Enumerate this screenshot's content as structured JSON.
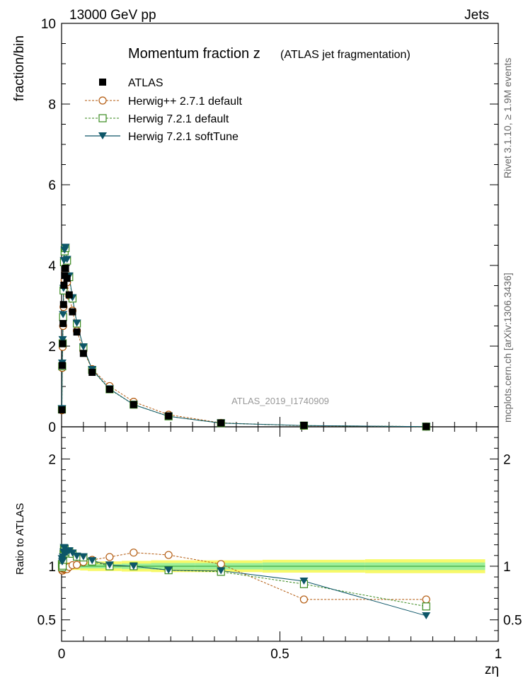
{
  "header": {
    "left": "13000 GeV pp",
    "right": "Jets",
    "side_top": "Rivet 3.1.10, ≥ 1.9M events",
    "side_bottom": "mcplots.cern.ch [arXiv:1306.3436]",
    "watermark": "ATLAS_2019_I1740909"
  },
  "chart_data": {
    "type": "scatter",
    "title": "Momentum fraction z",
    "subtitle": "(ATLAS jet fragmentation)",
    "xlabel": "zη",
    "ylabel": "fraction/bin",
    "ratio_ylabel": "Ratio to ATLAS",
    "xlim": [
      0,
      1
    ],
    "ylim": [
      0,
      10
    ],
    "ratio_ylim": [
      0.3,
      2.3
    ],
    "x_ticks": [
      "0",
      "0.5",
      "1"
    ],
    "y_ticks": [
      "0",
      "2",
      "4",
      "6",
      "8",
      "10"
    ],
    "ratio_ticks": [
      "0.5",
      "1",
      "2"
    ],
    "legend_position": "top-left",
    "x": [
      0.0008,
      0.0015,
      0.0025,
      0.0035,
      0.0045,
      0.0055,
      0.007,
      0.009,
      0.0125,
      0.0175,
      0.025,
      0.035,
      0.05,
      0.07,
      0.11,
      0.165,
      0.245,
      0.365,
      0.555,
      0.835
    ],
    "series": [
      {
        "name": "ATLAS",
        "values": [
          0.42,
          1.52,
          2.06,
          2.56,
          3.03,
          3.51,
          3.75,
          3.93,
          3.68,
          3.27,
          2.85,
          2.35,
          1.82,
          1.35,
          0.93,
          0.55,
          0.27,
          0.096,
          0.036,
          0.008
        ]
      },
      {
        "name": "Herwig++ 2.7.1 default",
        "values": [
          0.41,
          1.46,
          1.98,
          2.5,
          2.97,
          3.43,
          3.64,
          3.82,
          3.58,
          3.25,
          2.88,
          2.38,
          1.89,
          1.43,
          1.01,
          0.62,
          0.3,
          0.098,
          0.025,
          0.0055
        ]
      },
      {
        "name": "Herwig 7.2.1 default",
        "values": [
          0.43,
          1.5,
          2.07,
          2.72,
          3.38,
          4.08,
          4.35,
          4.43,
          4.12,
          3.71,
          3.18,
          2.56,
          1.97,
          1.41,
          0.93,
          0.55,
          0.26,
          0.091,
          0.03,
          0.005
        ]
      },
      {
        "name": "Herwig 7.2.1 softTune",
        "values": [
          0.45,
          1.58,
          2.16,
          2.78,
          3.43,
          4.12,
          4.38,
          4.45,
          4.15,
          3.74,
          3.2,
          2.57,
          1.98,
          1.42,
          0.94,
          0.55,
          0.26,
          0.092,
          0.031,
          0.0043
        ]
      }
    ],
    "ratio_series": [
      {
        "name": "Herwig++ 2.7.1 default",
        "values": [
          0.97,
          0.96,
          0.96,
          0.975,
          0.98,
          0.977,
          0.97,
          0.972,
          0.973,
          0.994,
          1.01,
          1.013,
          1.039,
          1.059,
          1.086,
          1.127,
          1.105,
          1.02,
          0.69,
          0.69
        ]
      },
      {
        "name": "Herwig 7.2.1 default",
        "values": [
          1.02,
          0.99,
          1.005,
          1.06,
          1.115,
          1.162,
          1.16,
          1.127,
          1.12,
          1.135,
          1.116,
          1.089,
          1.082,
          1.044,
          1.0,
          1.0,
          0.963,
          0.948,
          0.833,
          0.625
        ]
      },
      {
        "name": "Herwig 7.2.1 softTune",
        "values": [
          1.07,
          1.04,
          1.05,
          1.086,
          1.132,
          1.174,
          1.168,
          1.132,
          1.128,
          1.144,
          1.123,
          1.094,
          1.088,
          1.052,
          1.011,
          1.0,
          0.963,
          0.958,
          0.861,
          0.538
        ]
      }
    ],
    "band_x": [
      0.0008,
      0.0015,
      0.0025,
      0.0035,
      0.0045,
      0.0055,
      0.007,
      0.009,
      0.0125,
      0.0175,
      0.025,
      0.035,
      0.05,
      0.07,
      0.11,
      0.165,
      0.245,
      0.365,
      0.555,
      0.835
    ],
    "band_inner": [
      0.02,
      0.02,
      0.02,
      0.02,
      0.02,
      0.02,
      0.02,
      0.02,
      0.02,
      0.02,
      0.02,
      0.02,
      0.02,
      0.02,
      0.02,
      0.025,
      0.03,
      0.03,
      0.035,
      0.035
    ],
    "band_outer": [
      0.035,
      0.035,
      0.035,
      0.035,
      0.035,
      0.035,
      0.035,
      0.035,
      0.035,
      0.035,
      0.035,
      0.035,
      0.04,
      0.045,
      0.045,
      0.05,
      0.055,
      0.055,
      0.06,
      0.065
    ],
    "colors": {
      "data": "#000000",
      "herwigpp": "#b35a0e",
      "h7default": "#3a8a1e",
      "h7softtune": "#0d5668",
      "band_outer": "#f7f96a",
      "band_inner": "#9ef09a"
    }
  }
}
